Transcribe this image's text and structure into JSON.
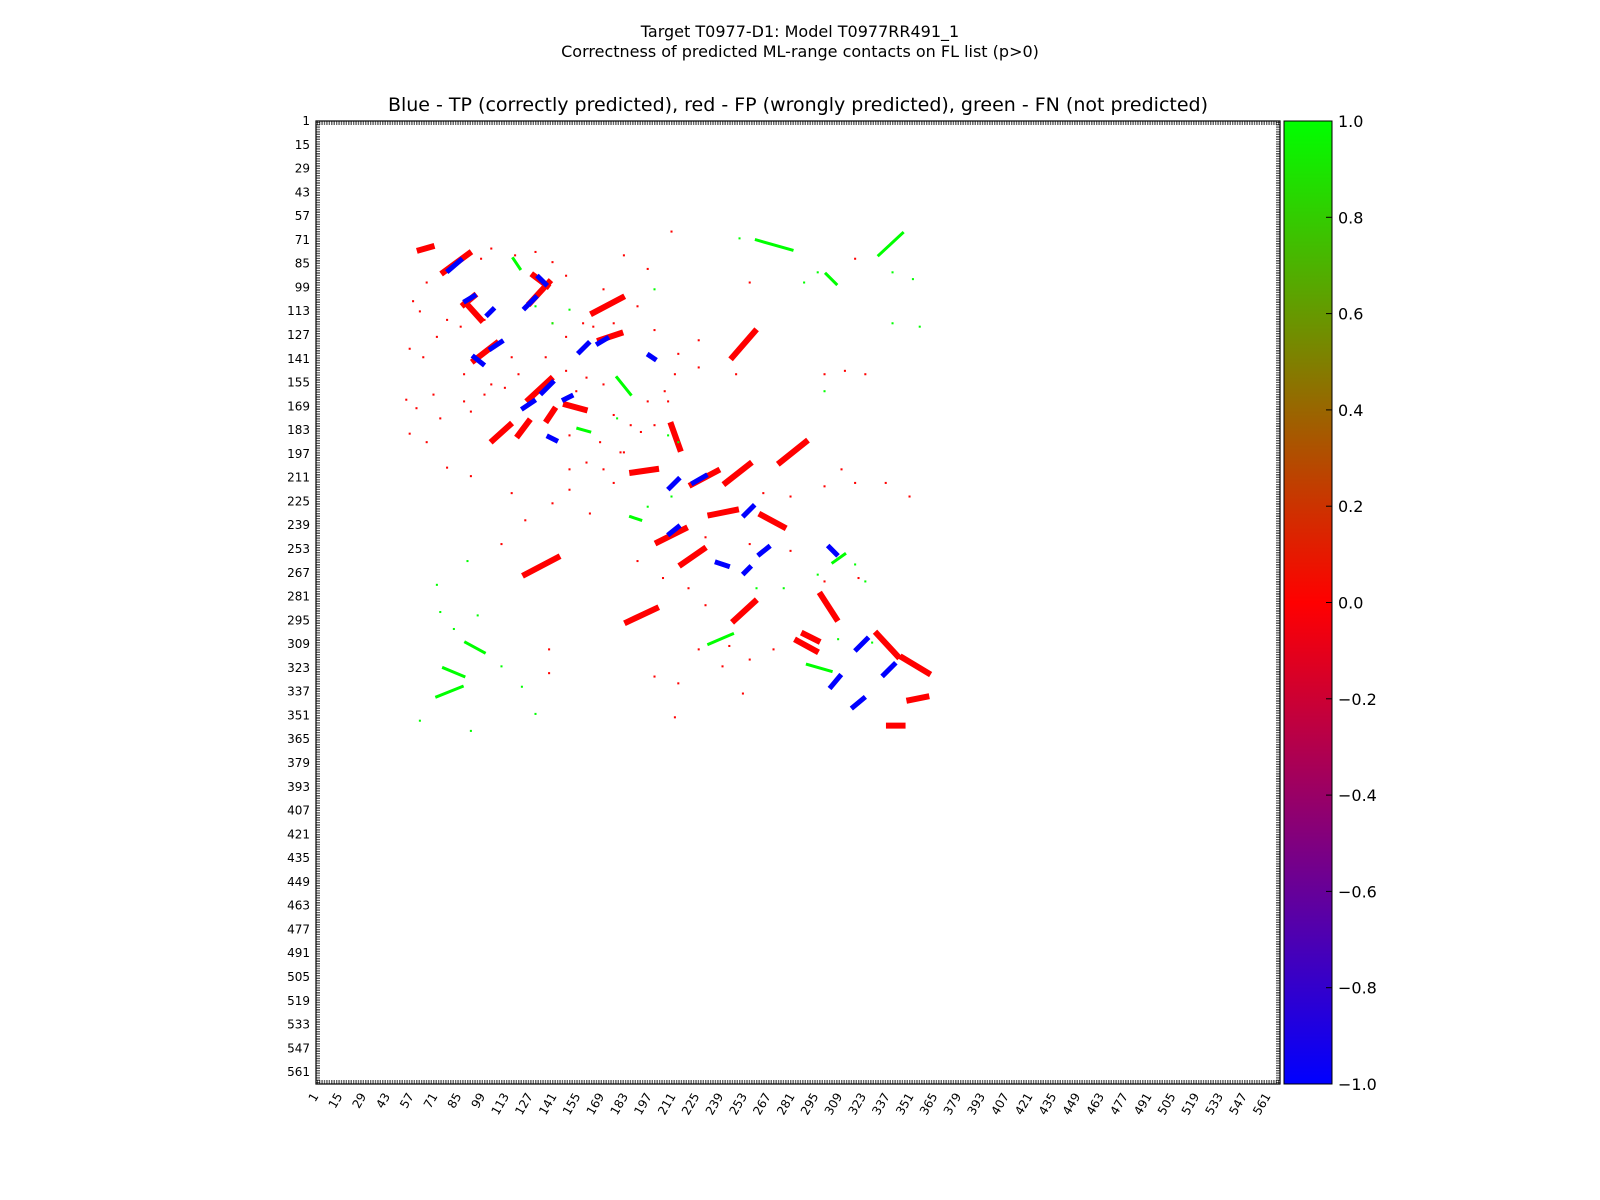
{
  "figure": {
    "title_line1": "Target T0977-D1: Model T0977RR491_1",
    "title_line2": "Correctness of predicted ML-range contacts on FL list (p>0)"
  },
  "chart_data": {
    "type": "heatmap",
    "title": "Blue - TP (correctly predicted), red - FP (wrongly predicted), green - FN (not predicted)",
    "xlabel": "",
    "ylabel": "",
    "xlim": [
      1,
      568
    ],
    "ylim": [
      1,
      568
    ],
    "ticks": [
      1,
      15,
      29,
      43,
      57,
      71,
      85,
      99,
      113,
      127,
      141,
      155,
      169,
      183,
      197,
      211,
      225,
      239,
      253,
      267,
      281,
      295,
      309,
      323,
      337,
      351,
      365,
      379,
      393,
      407,
      421,
      435,
      449,
      463,
      477,
      491,
      505,
      519,
      533,
      547,
      561
    ],
    "colorbar": {
      "range": [
        -1.0,
        1.0
      ],
      "ticks": [
        "1.0",
        "0.8",
        "0.6",
        "0.4",
        "0.2",
        "0.0",
        "−0.2",
        "−0.4",
        "−0.6",
        "−0.8",
        "−1.0"
      ],
      "colors": {
        "tp": "#0000ff",
        "fp": "#ff0000",
        "fn": "#00ff00"
      }
    },
    "tp_segments": [
      [
        79,
        89,
        86,
        83
      ],
      [
        132,
        93,
        136,
        97
      ],
      [
        124,
        111,
        130,
        105
      ],
      [
        89,
        107,
        94,
        104
      ],
      [
        102,
        115,
        105,
        112
      ],
      [
        94,
        140,
        99,
        144
      ],
      [
        104,
        135,
        110,
        131
      ],
      [
        134,
        161,
        140,
        155
      ],
      [
        156,
        137,
        161,
        132
      ],
      [
        147,
        165,
        151,
        163
      ],
      [
        167,
        132,
        172,
        129
      ],
      [
        197,
        139,
        200,
        141
      ],
      [
        209,
        217,
        214,
        212
      ],
      [
        223,
        214,
        230,
        210
      ],
      [
        253,
        233,
        258,
        228
      ],
      [
        209,
        244,
        214,
        240
      ],
      [
        253,
        267,
        256,
        264
      ],
      [
        262,
        256,
        267,
        252
      ],
      [
        237,
        261,
        243,
        263
      ],
      [
        303,
        252,
        307,
        256
      ],
      [
        319,
        312,
        325,
        306
      ],
      [
        335,
        327,
        341,
        321
      ],
      [
        304,
        334,
        309,
        328
      ],
      [
        317,
        346,
        323,
        341
      ],
      [
        123,
        170,
        129,
        166
      ],
      [
        138,
        187,
        142,
        189
      ]
    ],
    "fp_segments": [
      [
        76,
        90,
        91,
        79
      ],
      [
        89,
        108,
        98,
        118
      ],
      [
        88,
        109,
        94,
        104
      ],
      [
        127,
        108,
        138,
        96
      ],
      [
        129,
        92,
        137,
        98
      ],
      [
        94,
        142,
        107,
        132
      ],
      [
        164,
        114,
        181,
        105
      ],
      [
        168,
        130,
        180,
        126
      ],
      [
        126,
        165,
        139,
        153
      ],
      [
        120,
        186,
        126,
        178
      ],
      [
        105,
        189,
        115,
        180
      ],
      [
        137,
        177,
        141,
        171
      ],
      [
        148,
        168,
        159,
        171
      ],
      [
        187,
        208,
        201,
        206
      ],
      [
        210,
        180,
        215,
        194
      ],
      [
        222,
        215,
        237,
        207
      ],
      [
        242,
        214,
        256,
        203
      ],
      [
        246,
        140,
        259,
        125
      ],
      [
        274,
        202,
        289,
        190
      ],
      [
        263,
        233,
        276,
        240
      ],
      [
        216,
        262,
        229,
        253
      ],
      [
        202,
        249,
        218,
        241
      ],
      [
        124,
        268,
        143,
        258
      ],
      [
        184,
        296,
        201,
        288
      ],
      [
        247,
        295,
        259,
        284
      ],
      [
        288,
        303,
        296,
        307
      ],
      [
        284,
        307,
        295,
        313
      ],
      [
        298,
        280,
        307,
        294
      ],
      [
        331,
        303,
        343,
        316
      ],
      [
        346,
        317,
        361,
        326
      ],
      [
        338,
        357,
        346,
        357
      ],
      [
        350,
        342,
        360,
        340
      ],
      [
        62,
        77,
        69,
        75
      ],
      [
        233,
        233,
        248,
        230
      ]
    ],
    "fn_segments": [
      [
        332,
        80,
        346,
        67
      ],
      [
        301,
        91,
        307,
        97
      ],
      [
        72,
        340,
        87,
        334
      ],
      [
        76,
        323,
        88,
        328
      ],
      [
        89,
        308,
        100,
        314
      ],
      [
        232,
        309,
        246,
        303
      ],
      [
        290,
        321,
        304,
        325
      ],
      [
        155,
        182,
        162,
        184
      ],
      [
        178,
        152,
        186,
        162
      ],
      [
        117,
        82,
        121,
        88
      ],
      [
        260,
        71,
        281,
        77
      ],
      [
        186,
        234,
        192,
        236
      ],
      [
        305,
        261,
        312,
        256
      ]
    ],
    "red_scatter": [
      [
        58,
        107
      ],
      [
        62,
        113
      ],
      [
        78,
        118
      ],
      [
        86,
        122
      ],
      [
        56,
        135
      ],
      [
        64,
        140
      ],
      [
        72,
        128
      ],
      [
        88,
        150
      ],
      [
        54,
        165
      ],
      [
        60,
        170
      ],
      [
        70,
        162
      ],
      [
        92,
        172
      ],
      [
        100,
        162
      ],
      [
        112,
        158
      ],
      [
        56,
        185
      ],
      [
        78,
        205
      ],
      [
        92,
        210
      ],
      [
        116,
        220
      ],
      [
        124,
        236
      ],
      [
        110,
        250
      ],
      [
        150,
        218
      ],
      [
        176,
        214
      ],
      [
        160,
        202
      ],
      [
        180,
        196
      ],
      [
        192,
        184
      ],
      [
        200,
        180
      ],
      [
        208,
        166
      ],
      [
        212,
        150
      ],
      [
        226,
        146
      ],
      [
        160,
        152
      ],
      [
        170,
        156
      ],
      [
        148,
        148
      ],
      [
        154,
        160
      ],
      [
        176,
        174
      ],
      [
        186,
        180
      ],
      [
        196,
        166
      ],
      [
        206,
        160
      ],
      [
        170,
        100
      ],
      [
        182,
        80
      ],
      [
        196,
        88
      ],
      [
        210,
        66
      ],
      [
        118,
        80
      ],
      [
        130,
        78
      ],
      [
        140,
        84
      ],
      [
        148,
        92
      ],
      [
        104,
        76
      ],
      [
        98,
        82
      ],
      [
        248,
        150
      ],
      [
        256,
        96
      ],
      [
        300,
        150
      ],
      [
        312,
        148
      ],
      [
        324,
        150
      ],
      [
        318,
        82
      ],
      [
        264,
        220
      ],
      [
        280,
        222
      ],
      [
        300,
        216
      ],
      [
        310,
        206
      ],
      [
        318,
        214
      ],
      [
        336,
        214
      ],
      [
        350,
        222
      ],
      [
        230,
        246
      ],
      [
        256,
        250
      ],
      [
        280,
        254
      ],
      [
        300,
        272
      ],
      [
        320,
        270
      ],
      [
        190,
        260
      ],
      [
        205,
        270
      ],
      [
        220,
        276
      ],
      [
        230,
        286
      ],
      [
        226,
        312
      ],
      [
        244,
        310
      ],
      [
        256,
        318
      ],
      [
        270,
        312
      ],
      [
        200,
        328
      ],
      [
        214,
        332
      ],
      [
        240,
        322
      ],
      [
        252,
        338
      ],
      [
        138,
        312
      ],
      [
        138,
        326
      ],
      [
        212,
        352
      ],
      [
        66,
        96
      ],
      [
        100,
        118
      ],
      [
        116,
        140
      ],
      [
        136,
        140
      ],
      [
        140,
        120
      ],
      [
        148,
        128
      ],
      [
        158,
        120
      ],
      [
        164,
        122
      ],
      [
        176,
        120
      ],
      [
        190,
        110
      ],
      [
        200,
        124
      ],
      [
        214,
        138
      ],
      [
        226,
        130
      ],
      [
        120,
        150
      ],
      [
        104,
        156
      ],
      [
        88,
        166
      ],
      [
        74,
        176
      ],
      [
        66,
        190
      ],
      [
        150,
        186
      ],
      [
        168,
        190
      ],
      [
        182,
        196
      ],
      [
        150,
        206
      ],
      [
        170,
        206
      ],
      [
        162,
        232
      ],
      [
        140,
        226
      ]
    ],
    "green_scatter": [
      [
        300,
        160
      ],
      [
        260,
        276
      ],
      [
        276,
        276
      ],
      [
        296,
        268
      ],
      [
        318,
        262
      ],
      [
        324,
        272
      ],
      [
        208,
        186
      ],
      [
        214,
        190
      ],
      [
        196,
        228
      ],
      [
        210,
        222
      ],
      [
        90,
        260
      ],
      [
        96,
        292
      ],
      [
        110,
        322
      ],
      [
        122,
        334
      ],
      [
        130,
        350
      ],
      [
        72,
        274
      ],
      [
        74,
        290
      ],
      [
        82,
        300
      ],
      [
        62,
        354
      ],
      [
        92,
        360
      ],
      [
        308,
        306
      ],
      [
        328,
        308
      ],
      [
        296,
        90
      ],
      [
        288,
        96
      ],
      [
        200,
        100
      ],
      [
        178,
        176
      ],
      [
        150,
        112
      ],
      [
        140,
        120
      ],
      [
        130,
        110
      ],
      [
        340,
        90
      ],
      [
        352,
        94
      ],
      [
        340,
        120
      ],
      [
        356,
        122
      ],
      [
        250,
        70
      ]
    ]
  }
}
